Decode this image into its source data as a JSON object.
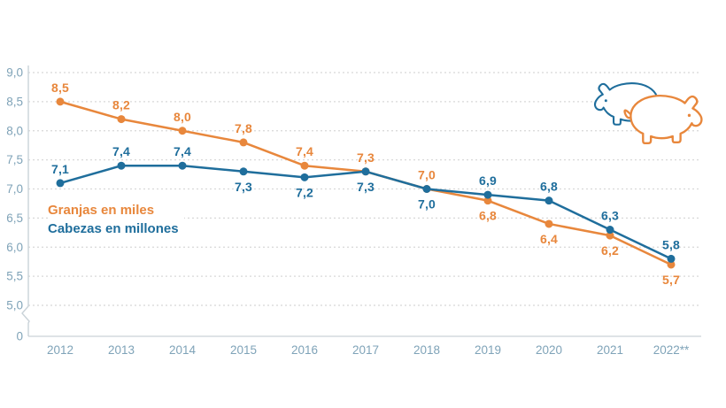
{
  "colors": {
    "orange": "#E8873C",
    "blue": "#1F6E9C",
    "axis_text": "#7FA3B8",
    "grid": "#D8D8D8",
    "axis_line": "#C9D2D8"
  },
  "legend": {
    "items": [
      {
        "label": "Granjas en miles",
        "color_key": "orange"
      },
      {
        "label": "Cabezas en millones",
        "color_key": "blue"
      }
    ]
  },
  "icons": [
    {
      "name": "pig-icon-blue",
      "color_key": "blue"
    },
    {
      "name": "pig-icon-orange",
      "color_key": "orange"
    }
  ],
  "chart_data": {
    "type": "line",
    "title": "",
    "xlabel": "",
    "ylabel": "",
    "categories": [
      "2012",
      "2013",
      "2014",
      "2015",
      "2016",
      "2017",
      "2018",
      "2019",
      "2020",
      "2021",
      "2022**"
    ],
    "series": [
      {
        "name": "Granjas en miles",
        "color_key": "orange",
        "values": [
          8.5,
          8.2,
          8.0,
          7.8,
          7.4,
          7.3,
          7.0,
          6.8,
          6.4,
          6.2,
          5.7
        ],
        "label_positions": [
          "above",
          "above",
          "above",
          "above",
          "above",
          "above",
          "above",
          "below",
          "below",
          "below",
          "below"
        ]
      },
      {
        "name": "Cabezas en millones",
        "color_key": "blue",
        "values": [
          7.1,
          7.4,
          7.4,
          7.3,
          7.2,
          7.3,
          7.0,
          6.9,
          6.8,
          6.3,
          5.8
        ],
        "label_positions": [
          "above",
          "above",
          "above",
          "below",
          "below",
          "below",
          "below",
          "above",
          "above",
          "above",
          "above"
        ]
      }
    ],
    "y_axis": {
      "ticks": [
        9.0,
        8.5,
        8.0,
        7.5,
        7.0,
        6.5,
        6.0,
        5.5,
        5.0
      ],
      "break_label": "0",
      "axis_break": true,
      "min": 5.0,
      "max": 9.0,
      "decimal_separator": ","
    },
    "ylim": [
      5.0,
      9.0
    ],
    "grid": true,
    "legend_position": "inside-left"
  }
}
